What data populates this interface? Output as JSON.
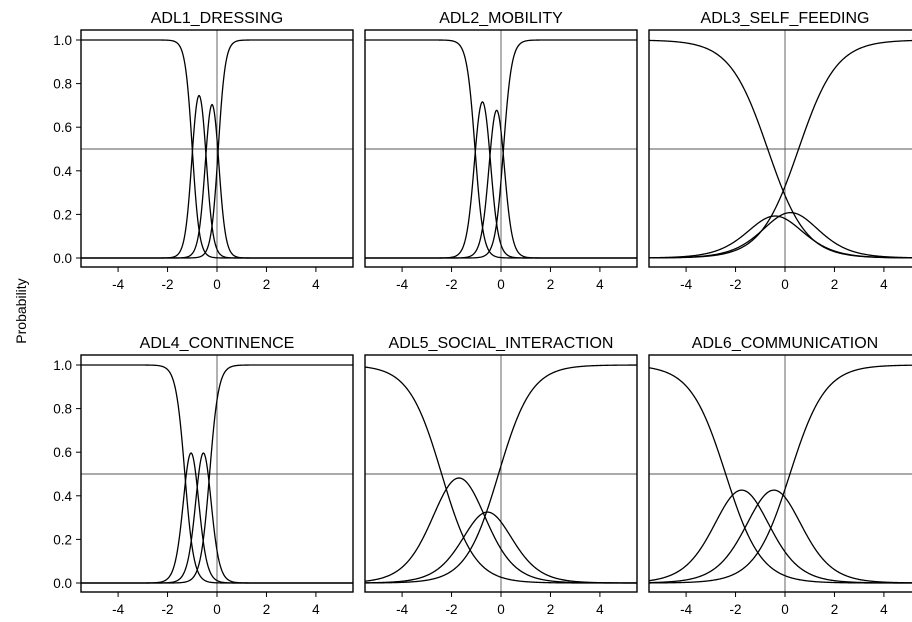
{
  "chart_data": {
    "type": "line",
    "ylabel": "Probability",
    "xlim": [
      -5,
      5
    ],
    "ylim": [
      0,
      1
    ],
    "x_ticks": [
      -4,
      -2,
      0,
      2,
      4
    ],
    "y_ticks": [
      0.0,
      0.2,
      0.4,
      0.6,
      0.8,
      1.0
    ],
    "y_tick_labels": [
      "0.0",
      "0.2",
      "0.4",
      "0.6",
      "0.8",
      "1.0"
    ],
    "reference_lines": {
      "x": 0,
      "y": 0.5
    },
    "layout": "2 rows x 3 columns",
    "panels": [
      {
        "title": "ADL1_DRESSING",
        "thresholds": [
          -1.0,
          -0.45,
          0.05
        ],
        "discrimination": 7.0
      },
      {
        "title": "ADL2_MOBILITY",
        "thresholds": [
          -1.05,
          -0.45,
          0.1
        ],
        "discrimination": 6.0
      },
      {
        "title": "ADL3_SELF_FEEDING",
        "thresholds": [
          -0.7,
          -0.1,
          0.55
        ],
        "discrimination": 1.3
      },
      {
        "title": "ADL4_CONTINENCE",
        "thresholds": [
          -1.3,
          -0.8,
          -0.3
        ],
        "discrimination": 5.5
      },
      {
        "title": "ADL5_SOCIAL_INTERACTION",
        "thresholds": [
          -2.4,
          -1.0,
          -0.1
        ],
        "discrimination": 1.5
      },
      {
        "title": "ADL6_COMMUNICATION",
        "thresholds": [
          -2.4,
          -1.1,
          0.2
        ],
        "discrimination": 1.4
      }
    ]
  }
}
